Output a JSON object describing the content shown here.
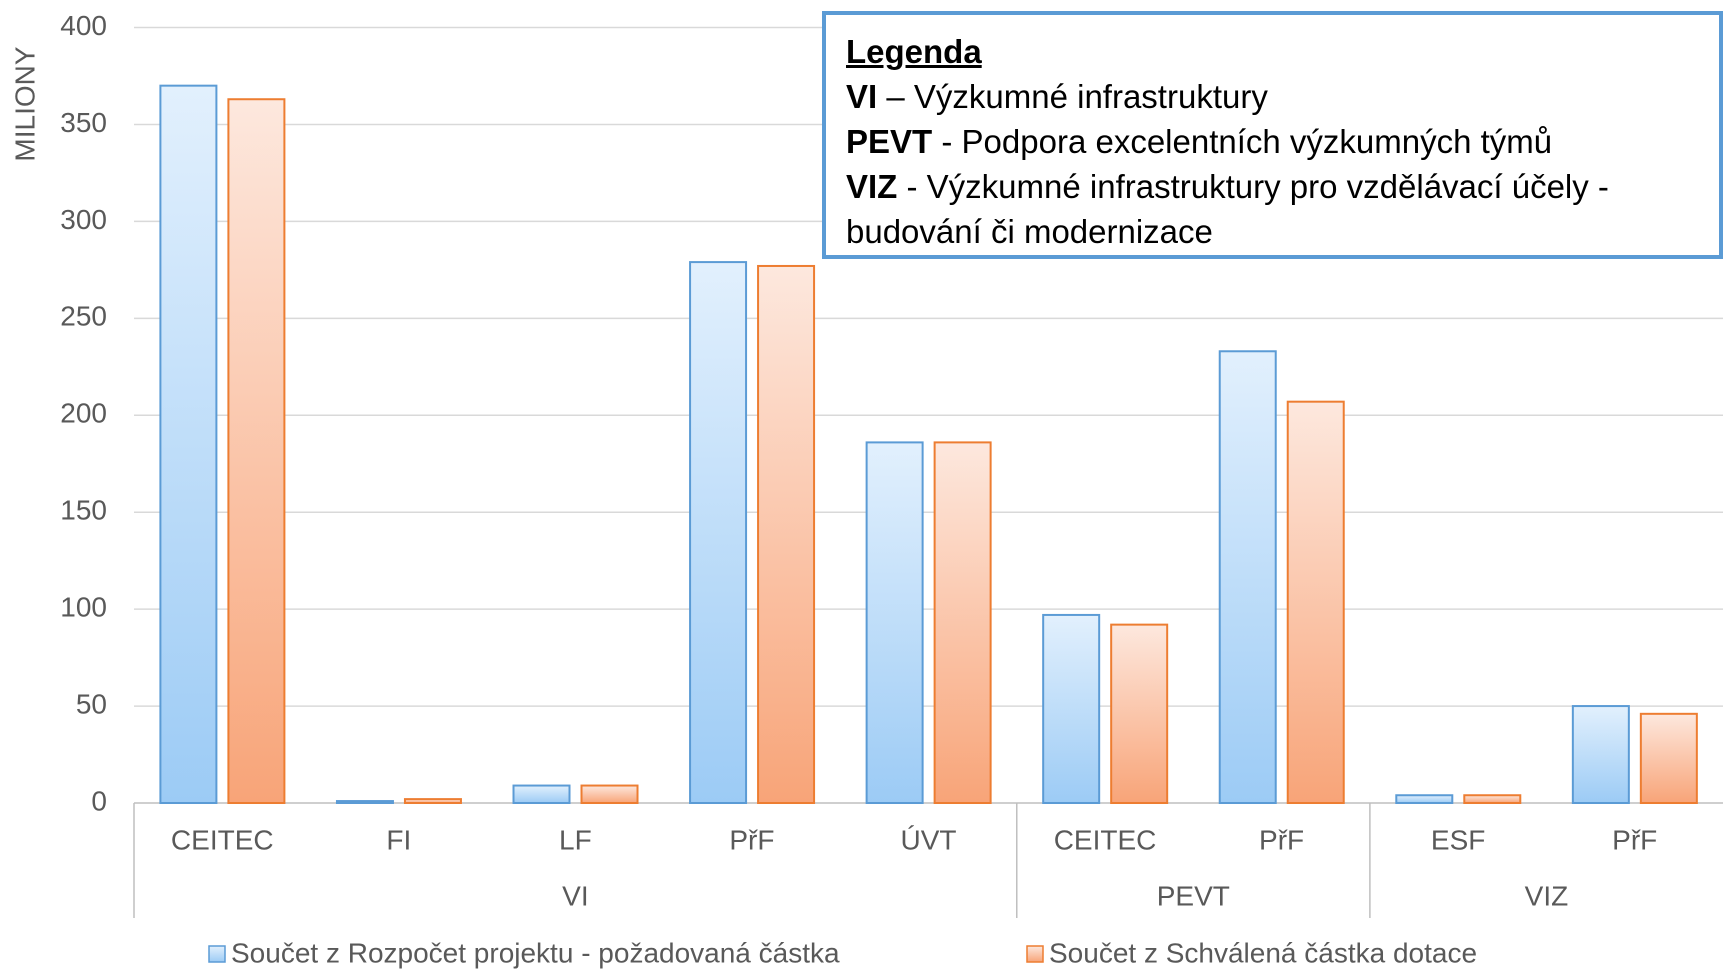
{
  "chart_data": {
    "type": "bar",
    "y_label": "MILIONY",
    "categories": [
      "CEITEC",
      "FI",
      "LF",
      "PřF",
      "ÚVT",
      "CEITEC",
      "PřF",
      "ESF",
      "PřF"
    ],
    "category_groups": [
      "VI",
      "VI",
      "VI",
      "VI",
      "VI",
      "PEVT",
      "PEVT",
      "VIZ",
      "VIZ"
    ],
    "series": [
      {
        "name": "Součet z Rozpočet projektu  - požadovaná částka",
        "color": "#5b9bd5",
        "values": [
          370,
          1,
          9,
          279,
          186,
          97,
          233,
          4,
          50
        ]
      },
      {
        "name": "Součet z Schválená částka dotace",
        "color": "#ed7d31",
        "values": [
          363,
          2,
          9,
          277,
          186,
          92,
          207,
          4,
          46
        ]
      }
    ],
    "ylim": [
      0,
      400
    ],
    "yticks": [
      0,
      50,
      100,
      150,
      200,
      250,
      300,
      350,
      400
    ],
    "grid": true,
    "annotation": {
      "title": "Legenda",
      "items": [
        {
          "term": "VI",
          "text": "– Výzkumné infrastruktury"
        },
        {
          "term": "PEVT",
          "text": "- Podpora excelentních výzkumných týmů"
        },
        {
          "term": "VIZ",
          "text": "- Výzkumné infrastruktury pro vzdělávací účely - budování či modernizace"
        }
      ]
    }
  }
}
